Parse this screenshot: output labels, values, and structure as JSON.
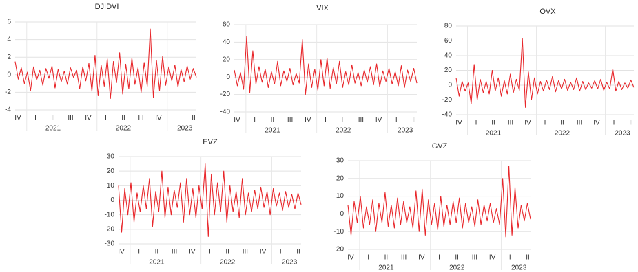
{
  "chart_data": [
    {
      "type": "line",
      "title": "DJIDVI",
      "color": "#e8262a",
      "grid": true,
      "quarters": [
        "IV",
        "I",
        "II",
        "III",
        "IV",
        "I",
        "II",
        "III",
        "IV",
        "I",
        "II"
      ],
      "years": [
        "2021",
        "2022",
        "2023"
      ],
      "ylim": [
        -4,
        6
      ],
      "yticks": [
        -4,
        -2,
        0,
        2,
        4,
        6
      ],
      "values": [
        1.5,
        -0.5,
        0.8,
        -1,
        0.3,
        -1.8,
        0.9,
        -0.6,
        0.5,
        -1.2,
        0.7,
        -0.4,
        1,
        -1.5,
        0.6,
        -0.8,
        0.4,
        -1.1,
        0.8,
        -0.3,
        0.5,
        -1.6,
        0.9,
        -0.7,
        1.3,
        -1.9,
        2.2,
        -2.4,
        1.1,
        -1.3,
        1.8,
        -2.7,
        1.5,
        -0.9,
        2.5,
        -2.2,
        1.2,
        -1.6,
        1.9,
        -1.1,
        0.8,
        -2,
        1.4,
        -1.3,
        5.2,
        -2.6,
        1.6,
        -1.8,
        2.1,
        -1.2,
        0.9,
        -0.7,
        1.1,
        -1.4,
        0.6,
        -0.8,
        1,
        -0.5,
        0.7,
        -0.3
      ]
    },
    {
      "type": "line",
      "title": "VIX",
      "color": "#e8262a",
      "grid": true,
      "quarters": [
        "IV",
        "I",
        "II",
        "III",
        "IV",
        "I",
        "II",
        "III",
        "IV",
        "I",
        "II"
      ],
      "years": [
        "2021",
        "2022",
        "2023"
      ],
      "ylim": [
        -40,
        60
      ],
      "yticks": [
        -40,
        -20,
        0,
        20,
        40,
        60
      ],
      "values": [
        8,
        -10,
        5,
        -14,
        47,
        -18,
        30,
        -8,
        12,
        -6,
        9,
        -12,
        6,
        -8,
        18,
        -10,
        7,
        -5,
        10,
        -9,
        4,
        -7,
        43,
        -20,
        15,
        -12,
        9,
        -15,
        20,
        -10,
        22,
        -13,
        11,
        -8,
        18,
        -12,
        6,
        -9,
        14,
        -7,
        5,
        -10,
        8,
        -6,
        12,
        -9,
        15,
        -11,
        7,
        -5,
        10,
        -8,
        6,
        -10,
        13,
        -12,
        8,
        -5,
        10,
        -7
      ]
    },
    {
      "type": "line",
      "title": "OVX",
      "color": "#e8262a",
      "grid": true,
      "quarters": [
        "IV",
        "I",
        "II",
        "III",
        "IV",
        "I",
        "II",
        "III",
        "IV",
        "I",
        "II"
      ],
      "years": [
        "2021",
        "2022",
        "2023"
      ],
      "ylim": [
        -40,
        80
      ],
      "yticks": [
        -40,
        -20,
        0,
        20,
        40,
        60,
        80
      ],
      "values": [
        10,
        -15,
        5,
        -8,
        3,
        -25,
        28,
        -20,
        8,
        -10,
        5,
        -12,
        20,
        -8,
        10,
        -15,
        6,
        -12,
        15,
        -10,
        8,
        -7,
        63,
        -30,
        18,
        -20,
        10,
        -12,
        5,
        -8,
        7,
        -6,
        12,
        -9,
        6,
        -5,
        8,
        -7,
        4,
        -6,
        10,
        -8,
        5,
        -6,
        3,
        -4,
        6,
        -5,
        8,
        -7,
        4,
        -5,
        22,
        -8,
        5,
        -6,
        3,
        -4,
        7,
        -3
      ]
    },
    {
      "type": "line",
      "title": "EVZ",
      "color": "#e8262a",
      "grid": true,
      "quarters": [
        "IV",
        "I",
        "II",
        "III",
        "IV",
        "I",
        "II",
        "III",
        "IV",
        "I",
        "II"
      ],
      "years": [
        "2021",
        "2022",
        "2023"
      ],
      "ylim": [
        -30,
        30
      ],
      "yticks": [
        -30,
        -20,
        -10,
        0,
        10,
        20,
        30
      ],
      "values": [
        10,
        -22,
        8,
        -10,
        12,
        -15,
        5,
        -8,
        10,
        -6,
        15,
        -18,
        6,
        -8,
        20,
        -12,
        9,
        -10,
        7,
        -5,
        12,
        -15,
        15,
        -10,
        8,
        -12,
        10,
        -6,
        25,
        -25,
        18,
        -10,
        12,
        -8,
        20,
        -15,
        10,
        -8,
        6,
        -12,
        15,
        -10,
        5,
        -8,
        7,
        -6,
        9,
        -5,
        6,
        -10,
        8,
        -4,
        5,
        -7,
        6,
        -5,
        4,
        -6,
        5,
        -3
      ]
    },
    {
      "type": "line",
      "title": "GVZ",
      "color": "#e8262a",
      "grid": true,
      "quarters": [
        "IV",
        "I",
        "II",
        "III",
        "IV",
        "I",
        "II",
        "III",
        "IV",
        "I",
        "II"
      ],
      "years": [
        "2021",
        "2022",
        "2023"
      ],
      "ylim": [
        -20,
        30
      ],
      "yticks": [
        -20,
        -10,
        0,
        10,
        20,
        30
      ],
      "values": [
        5,
        -12,
        7,
        -5,
        10,
        -8,
        4,
        -6,
        8,
        -10,
        6,
        -5,
        12,
        -7,
        5,
        -8,
        9,
        -6,
        7,
        -5,
        4,
        -8,
        13,
        -10,
        14,
        -12,
        8,
        -6,
        6,
        -9,
        10,
        -7,
        5,
        -6,
        7,
        -5,
        9,
        -8,
        6,
        -5,
        4,
        -7,
        8,
        -6,
        5,
        -4,
        6,
        -5,
        3,
        -6,
        20,
        -13,
        27,
        -12,
        15,
        -8,
        5,
        -4,
        6,
        -3
      ]
    }
  ]
}
